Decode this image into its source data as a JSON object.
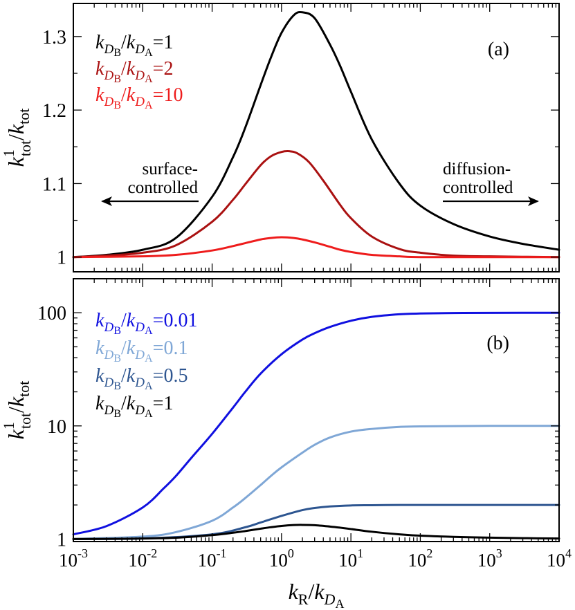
{
  "chart_data": [
    {
      "type": "line",
      "panel_label": "(a)",
      "x_scale": "log",
      "xlim": [
        0.001,
        10000
      ],
      "ylim": [
        0.98,
        1.345
      ],
      "ylabel": {
        "base": "k",
        "sup": "1",
        "sub": "tot",
        "slash": "/",
        "base2": "k",
        "sub2": "tot"
      },
      "yticks": [
        1.0,
        1.1,
        1.2,
        1.3
      ],
      "ytick_labels": [
        "1",
        "1.1",
        "1.2",
        "1.3"
      ],
      "legend": [
        {
          "k1": "k",
          "d1": "D",
          "s1": "B",
          "slash": "/",
          "k2": "k",
          "d2": "D",
          "s2": "A",
          "eq": "=",
          "val": "1",
          "color": "#000000"
        },
        {
          "k1": "k",
          "d1": "D",
          "s1": "B",
          "slash": "/",
          "k2": "k",
          "d2": "D",
          "s2": "A",
          "eq": "=",
          "val": "2",
          "color": "#aa1111"
        },
        {
          "k1": "k",
          "d1": "D",
          "s1": "B",
          "slash": "/",
          "k2": "k",
          "d2": "D",
          "s2": "A",
          "eq": "=",
          "val": "10",
          "color": "#ee1c1c"
        }
      ],
      "annotations": {
        "left_line1": "surface-",
        "left_line2": "controlled",
        "right_line1": "diffusion-",
        "right_line2": "controlled"
      },
      "series": [
        {
          "name": "kDB/kDA=1",
          "color": "#000000",
          "x": [
            0.001,
            0.003,
            0.01,
            0.03,
            0.1,
            0.2,
            0.3,
            0.5,
            0.7,
            1,
            1.5,
            2,
            3,
            5,
            7,
            10,
            20,
            50,
            100,
            300,
            1000,
            3000,
            10000
          ],
          "y": [
            1.0,
            1.003,
            1.01,
            1.026,
            1.082,
            1.136,
            1.176,
            1.234,
            1.271,
            1.305,
            1.329,
            1.333,
            1.325,
            1.289,
            1.26,
            1.225,
            1.16,
            1.1,
            1.07,
            1.045,
            1.028,
            1.018,
            1.01
          ]
        },
        {
          "name": "kDB/kDA=2",
          "color": "#aa1111",
          "x": [
            0.001,
            0.003,
            0.01,
            0.03,
            0.1,
            0.2,
            0.3,
            0.5,
            0.7,
            1,
            1.3,
            1.7,
            2.5,
            4,
            7,
            10,
            20,
            50,
            100,
            300,
            1000,
            10000
          ],
          "y": [
            1.0,
            1.002,
            1.006,
            1.016,
            1.048,
            1.078,
            1.099,
            1.125,
            1.137,
            1.143,
            1.144,
            1.141,
            1.129,
            1.104,
            1.071,
            1.053,
            1.028,
            1.011,
            1.006,
            1.002,
            1.001,
            1.0
          ]
        },
        {
          "name": "kDB/kDA=10",
          "color": "#ee1c1c",
          "x": [
            0.001,
            0.01,
            0.03,
            0.1,
            0.2,
            0.3,
            0.5,
            0.7,
            1,
            1.5,
            2,
            3,
            5,
            7,
            10,
            20,
            50,
            100,
            1000,
            10000
          ],
          "y": [
            1.0,
            1.001,
            1.003,
            1.009,
            1.015,
            1.019,
            1.024,
            1.026,
            1.027,
            1.026,
            1.024,
            1.02,
            1.014,
            1.01,
            1.007,
            1.003,
            1.001,
            1.0,
            1.0,
            1.0
          ]
        }
      ]
    },
    {
      "type": "line",
      "panel_label": "(b)",
      "x_scale": "log",
      "y_scale": "log",
      "xlim": [
        0.001,
        10000
      ],
      "ylim": [
        0.95,
        200
      ],
      "xlabel": {
        "base": "k",
        "sub": "R",
        "slash": "/",
        "base2": "k",
        "d2": "D",
        "s2": "A"
      },
      "ylabel": {
        "base": "k",
        "sup": "1",
        "sub": "tot",
        "slash": "/",
        "base2": "k",
        "sub2": "tot"
      },
      "yticks": [
        1,
        10,
        100
      ],
      "ytick_labels": [
        "1",
        "10",
        "100"
      ],
      "xticks": [
        0.001,
        0.01,
        0.1,
        1,
        10,
        100,
        1000,
        10000
      ],
      "xtick_labels": [
        {
          "base": "10",
          "exp": "-3"
        },
        {
          "base": "10",
          "exp": "-2"
        },
        {
          "base": "10",
          "exp": "-1"
        },
        {
          "base": "10",
          "exp": "0"
        },
        {
          "base": "10",
          "exp": "1"
        },
        {
          "base": "10",
          "exp": "2"
        },
        {
          "base": "10",
          "exp": "3"
        },
        {
          "base": "10",
          "exp": "4"
        }
      ],
      "legend": [
        {
          "k1": "k",
          "d1": "D",
          "s1": "B",
          "slash": "/",
          "k2": "k",
          "d2": "D",
          "s2": "A",
          "eq": "=",
          "val": "0.01",
          "color": "#1010e0"
        },
        {
          "k1": "k",
          "d1": "D",
          "s1": "B",
          "slash": "/",
          "k2": "k",
          "d2": "D",
          "s2": "A",
          "eq": "=",
          "val": "0.1",
          "color": "#7fa7d6"
        },
        {
          "k1": "k",
          "d1": "D",
          "s1": "B",
          "slash": "/",
          "k2": "k",
          "d2": "D",
          "s2": "A",
          "eq": "=",
          "val": "0.5",
          "color": "#2d5590"
        },
        {
          "k1": "k",
          "d1": "D",
          "s1": "B",
          "slash": "/",
          "k2": "k",
          "d2": "D",
          "s2": "A",
          "eq": "=",
          "val": "1",
          "color": "#000000"
        }
      ],
      "series": [
        {
          "name": "kDB/kDA=0.01",
          "color": "#1010e0",
          "x": [
            0.001,
            0.003,
            0.01,
            0.02,
            0.03,
            0.05,
            0.1,
            0.2,
            0.3,
            0.5,
            1,
            2,
            3,
            5,
            10,
            20,
            50,
            100,
            300,
            1000,
            10000
          ],
          "y": [
            1.1,
            1.3,
            1.9,
            2.8,
            3.6,
            5.2,
            8.5,
            14.5,
            20,
            29,
            43,
            58,
            66,
            75,
            85,
            92,
            97,
            98.5,
            99.4,
            99.8,
            100
          ]
        },
        {
          "name": "kDB/kDA=0.1",
          "color": "#7fa7d6",
          "x": [
            0.001,
            0.01,
            0.03,
            0.1,
            0.2,
            0.3,
            0.5,
            0.7,
            1,
            2,
            3,
            5,
            10,
            20,
            50,
            100,
            1000,
            10000
          ],
          "y": [
            1.0,
            1.05,
            1.15,
            1.45,
            1.9,
            2.3,
            3.0,
            3.6,
            4.3,
            5.8,
            6.8,
            7.9,
            8.9,
            9.4,
            9.8,
            9.9,
            10.0,
            10.0
          ]
        },
        {
          "name": "kDB/kDA=0.5",
          "color": "#2d5590",
          "x": [
            0.001,
            0.01,
            0.1,
            0.3,
            0.5,
            1,
            2,
            3,
            5,
            10,
            20,
            50,
            100,
            1000,
            10000
          ],
          "y": [
            1.0,
            1.01,
            1.1,
            1.27,
            1.4,
            1.6,
            1.8,
            1.88,
            1.94,
            1.98,
            1.99,
            2.0,
            2.0,
            2.0,
            2.0
          ]
        },
        {
          "name": "kDB/kDA=1",
          "color": "#000000",
          "x": [
            0.001,
            0.003,
            0.01,
            0.03,
            0.1,
            0.2,
            0.3,
            0.5,
            0.7,
            1,
            1.5,
            2,
            3,
            5,
            7,
            10,
            20,
            50,
            100,
            300,
            1000,
            3000,
            10000
          ],
          "y": [
            1.0,
            1.003,
            1.01,
            1.026,
            1.082,
            1.136,
            1.176,
            1.234,
            1.271,
            1.305,
            1.329,
            1.333,
            1.325,
            1.289,
            1.26,
            1.225,
            1.16,
            1.1,
            1.07,
            1.045,
            1.028,
            1.018,
            1.01
          ]
        }
      ]
    }
  ]
}
